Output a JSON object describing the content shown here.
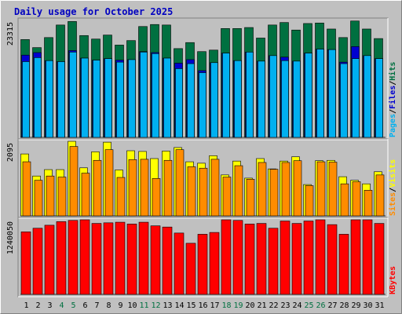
{
  "title": "Daily usage for October 2025",
  "colors": {
    "background": "#c0c0c0",
    "frame_light": "#ffffff",
    "frame_dark": "#808080",
    "title_text": "#0000c0",
    "hits": "#007040",
    "files": "#0000d0",
    "pages": "#00b0f0",
    "visits": "#ffff00",
    "sites": "#ff8c00",
    "kbytes": "#ff0000",
    "weekend_label": "#007040",
    "weekday_label": "#000000"
  },
  "chart_data": [
    {
      "type": "bar",
      "panel": "hits-files-pages",
      "y_max_label": "23315",
      "ylim": [
        0,
        23315
      ],
      "legend": [
        {
          "label": "Pages",
          "color": "#00b0f0"
        },
        {
          "label": "/",
          "color": "#000000"
        },
        {
          "label": "Files",
          "color": "#0000d0"
        },
        {
          "label": "/",
          "color": "#000000"
        },
        {
          "label": "Hits",
          "color": "#007040"
        }
      ],
      "categories": [
        "1",
        "2",
        "3",
        "4",
        "5",
        "6",
        "7",
        "8",
        "9",
        "10",
        "11",
        "12",
        "13",
        "14",
        "15",
        "16",
        "17",
        "18",
        "19",
        "20",
        "21",
        "22",
        "23",
        "24",
        "25",
        "26",
        "27",
        "28",
        "29",
        "30",
        "31"
      ],
      "series": [
        {
          "name": "Hits",
          "values": [
            19500,
            17900,
            19900,
            22400,
            23100,
            20300,
            19600,
            20400,
            18400,
            19300,
            22100,
            22500,
            22400,
            17700,
            18900,
            17100,
            17400,
            21700,
            21700,
            21900,
            19800,
            22400,
            22900,
            21400,
            22700,
            22800,
            21600,
            19900,
            23200,
            21600,
            19700
          ]
        },
        {
          "name": "Files",
          "values": [
            16400,
            16900,
            15300,
            15100,
            17300,
            15800,
            15400,
            15700,
            15400,
            15500,
            17100,
            16900,
            15800,
            14800,
            15500,
            13300,
            14900,
            16800,
            15300,
            17000,
            15200,
            16300,
            16000,
            15200,
            16800,
            17600,
            17500,
            15000,
            18100,
            16300,
            15700
          ]
        },
        {
          "name": "Pages",
          "values": [
            15100,
            15900,
            15300,
            15100,
            17000,
            15800,
            15400,
            15700,
            15000,
            15500,
            17000,
            16700,
            15800,
            13700,
            14700,
            12900,
            14900,
            16800,
            15300,
            17000,
            15200,
            16300,
            15300,
            15200,
            16800,
            17600,
            17500,
            14700,
            15700,
            16300,
            15700
          ]
        }
      ]
    },
    {
      "type": "bar",
      "panel": "visits-sites",
      "y_max_label": "2095",
      "ylim": [
        0,
        2095
      ],
      "legend": [
        {
          "label": "Sites",
          "color": "#ff8c00"
        },
        {
          "label": "/",
          "color": "#000000"
        },
        {
          "label": "Visits",
          "color": "#ffff00"
        }
      ],
      "categories": [
        "1",
        "2",
        "3",
        "4",
        "5",
        "6",
        "7",
        "8",
        "9",
        "10",
        "11",
        "12",
        "13",
        "14",
        "15",
        "16",
        "17",
        "18",
        "19",
        "20",
        "21",
        "22",
        "23",
        "24",
        "25",
        "26",
        "27",
        "28",
        "29",
        "30",
        "31"
      ],
      "series": [
        {
          "name": "Visits",
          "values": [
            1740,
            1120,
            1300,
            1300,
            2095,
            1350,
            1800,
            2070,
            1290,
            1830,
            1810,
            1610,
            1820,
            1920,
            1520,
            1480,
            1690,
            1150,
            1540,
            1060,
            1610,
            1320,
            1540,
            1660,
            880,
            1550,
            1560,
            1100,
            1000,
            900,
            1240
          ]
        },
        {
          "name": "Sites",
          "values": [
            1520,
            1000,
            1120,
            1090,
            1950,
            1200,
            1560,
            1860,
            1080,
            1580,
            1590,
            1050,
            1560,
            1860,
            1380,
            1340,
            1590,
            1090,
            1410,
            1030,
            1500,
            1310,
            1500,
            1550,
            850,
            1520,
            1510,
            900,
            960,
            720,
            1150
          ]
        }
      ]
    },
    {
      "type": "bar",
      "panel": "kbytes",
      "y_max_label": "1240050",
      "ylim": [
        0,
        1240050
      ],
      "legend": [
        {
          "label": "KBytes",
          "color": "#ff0000"
        }
      ],
      "categories": [
        "1",
        "2",
        "3",
        "4",
        "5",
        "6",
        "7",
        "8",
        "9",
        "10",
        "11",
        "12",
        "13",
        "14",
        "15",
        "16",
        "17",
        "18",
        "19",
        "20",
        "21",
        "22",
        "23",
        "24",
        "25",
        "26",
        "27",
        "28",
        "29",
        "30",
        "31"
      ],
      "series": [
        {
          "name": "KBytes",
          "values": [
            1040000,
            1100000,
            1150000,
            1210000,
            1230000,
            1240000,
            1180000,
            1190000,
            1200000,
            1170000,
            1200000,
            1140000,
            1120000,
            1020000,
            850000,
            1000000,
            1030000,
            1240050,
            1230000,
            1170000,
            1180000,
            1100000,
            1220000,
            1180000,
            1220000,
            1240000,
            1160000,
            1000000,
            1240050,
            1240050,
            1180000
          ]
        }
      ]
    }
  ],
  "x_axis": {
    "weekend_days": [
      "4",
      "5",
      "11",
      "12",
      "18",
      "19",
      "25",
      "26"
    ]
  }
}
